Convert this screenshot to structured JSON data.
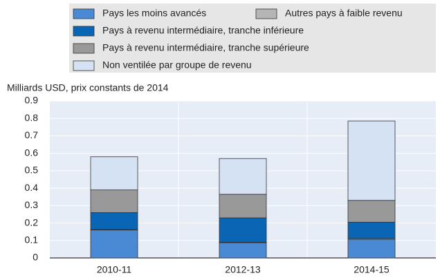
{
  "chart_data": {
    "type": "stacked-bar",
    "y_label": "Milliards USD, prix constants de 2014",
    "categories": [
      "2010-11",
      "2012-13",
      "2014-15"
    ],
    "series": [
      {
        "name": "Pays les moins avancés",
        "color": "#4a8ad4",
        "values": [
          0.16,
          0.087,
          0.107
        ]
      },
      {
        "name": "Autres pays à faible revenu",
        "color": "#b5b5b5",
        "values": [
          0.003,
          0.003,
          0.005
        ]
      },
      {
        "name": "Pays à revenu intermédiaire, tranche inférieure",
        "color": "#0a66b5",
        "values": [
          0.097,
          0.14,
          0.093
        ]
      },
      {
        "name": "Pays à revenu intermédiaire, tranche supérieure",
        "color": "#999999",
        "values": [
          0.13,
          0.135,
          0.125
        ]
      },
      {
        "name": "Non ventilée par groupe de revenu",
        "color": "#d5e2f3",
        "values": [
          0.19,
          0.205,
          0.455
        ]
      }
    ],
    "ylim": [
      0,
      0.9
    ],
    "yticks": [
      0,
      0.1,
      0.2,
      0.3,
      0.4,
      0.5,
      0.6,
      0.7,
      0.8,
      0.9
    ],
    "grid": true
  }
}
